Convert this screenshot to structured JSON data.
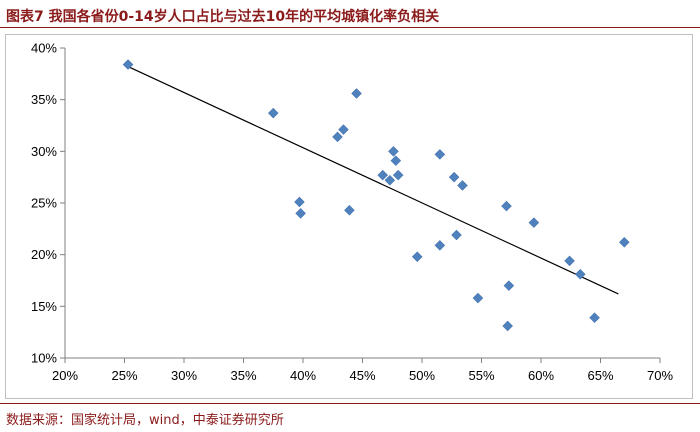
{
  "title": "图表7 我国各省份0-14岁人口占比与过去10年的平均城镇化率负相关",
  "source": "数据来源：国家统计局，wind，中泰证券研究所",
  "colors": {
    "title": "#8b1a1a",
    "marker": "#4f81bd",
    "trendline": "#000000",
    "axis": "#808080"
  },
  "chart_data": {
    "type": "scatter",
    "title": "",
    "xlabel": "",
    "ylabel": "",
    "xlim": [
      0.2,
      0.7
    ],
    "ylim": [
      0.1,
      0.4
    ],
    "x_ticks": [
      0.2,
      0.25,
      0.3,
      0.35,
      0.4,
      0.45,
      0.5,
      0.55,
      0.6,
      0.65,
      0.7
    ],
    "x_tick_labels": [
      "20%",
      "25%",
      "30%",
      "35%",
      "40%",
      "45%",
      "50%",
      "55%",
      "60%",
      "65%",
      "70%"
    ],
    "y_ticks": [
      0.1,
      0.15,
      0.2,
      0.25,
      0.3,
      0.35,
      0.4
    ],
    "y_tick_labels": [
      "10%",
      "15%",
      "20%",
      "25%",
      "30%",
      "35%",
      "40%"
    ],
    "grid": false,
    "marker": "diamond",
    "points": [
      {
        "x": 0.253,
        "y": 0.384
      },
      {
        "x": 0.375,
        "y": 0.337
      },
      {
        "x": 0.397,
        "y": 0.251
      },
      {
        "x": 0.398,
        "y": 0.24
      },
      {
        "x": 0.429,
        "y": 0.314
      },
      {
        "x": 0.434,
        "y": 0.321
      },
      {
        "x": 0.439,
        "y": 0.243
      },
      {
        "x": 0.445,
        "y": 0.356
      },
      {
        "x": 0.467,
        "y": 0.277
      },
      {
        "x": 0.473,
        "y": 0.272
      },
      {
        "x": 0.476,
        "y": 0.3
      },
      {
        "x": 0.478,
        "y": 0.291
      },
      {
        "x": 0.48,
        "y": 0.277
      },
      {
        "x": 0.496,
        "y": 0.198
      },
      {
        "x": 0.515,
        "y": 0.297
      },
      {
        "x": 0.515,
        "y": 0.209
      },
      {
        "x": 0.527,
        "y": 0.275
      },
      {
        "x": 0.529,
        "y": 0.219
      },
      {
        "x": 0.534,
        "y": 0.267
      },
      {
        "x": 0.547,
        "y": 0.158
      },
      {
        "x": 0.571,
        "y": 0.247
      },
      {
        "x": 0.572,
        "y": 0.131
      },
      {
        "x": 0.573,
        "y": 0.17
      },
      {
        "x": 0.594,
        "y": 0.231
      },
      {
        "x": 0.624,
        "y": 0.194
      },
      {
        "x": 0.633,
        "y": 0.181
      },
      {
        "x": 0.645,
        "y": 0.139
      },
      {
        "x": 0.67,
        "y": 0.212
      }
    ],
    "trendline": {
      "x": [
        0.253,
        0.665
      ],
      "y": [
        0.382,
        0.162
      ]
    }
  }
}
